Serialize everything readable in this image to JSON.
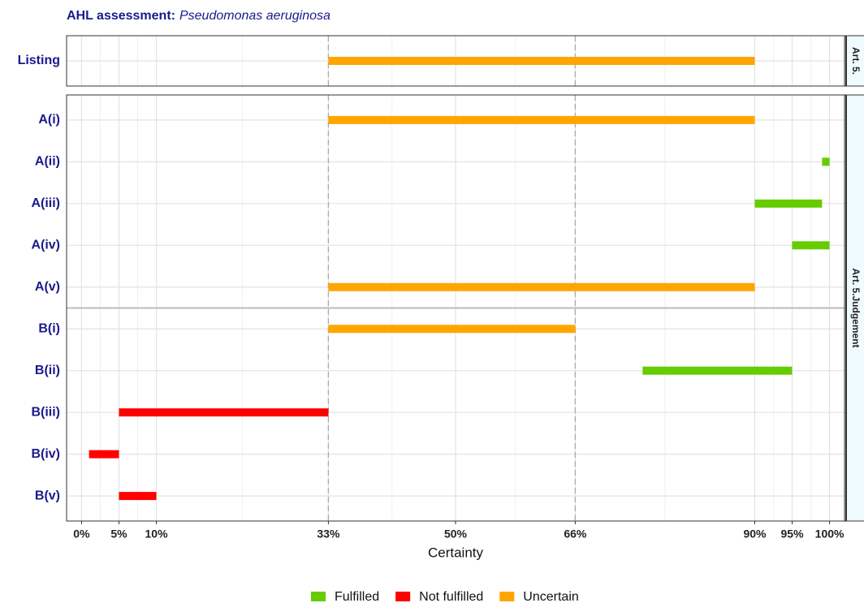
{
  "chart_data": {
    "type": "range",
    "title": "AHL  assessment:",
    "subtitle": "Pseudomonas aeruginosa",
    "x_label": "Certainty",
    "xlim": [
      -2,
      102
    ],
    "xticks": [
      {
        "value": 0,
        "label": "0%"
      },
      {
        "value": 5,
        "label": "5%"
      },
      {
        "value": 10,
        "label": "10%"
      },
      {
        "value": 33,
        "label": "33%"
      },
      {
        "value": 50,
        "label": "50%"
      },
      {
        "value": 66,
        "label": "66%"
      },
      {
        "value": 90,
        "label": "90%"
      },
      {
        "value": 95,
        "label": "95%"
      },
      {
        "value": 100,
        "label": "100%"
      }
    ],
    "vlines": [
      33,
      66
    ],
    "grid": true,
    "legend": [
      {
        "name": "Fulfilled",
        "color": "#66cc00"
      },
      {
        "name": "Not fulfilled",
        "color": "#ff0000"
      },
      {
        "name": "Uncertain",
        "color": "#ffa500"
      }
    ],
    "panels": [
      {
        "strip": "Art. 5.",
        "categories": [
          "Listing"
        ],
        "series": [
          {
            "low": [
              null
            ],
            "high": [
              null
            ]
          },
          {
            "low": [
              null
            ],
            "high": [
              null
            ]
          },
          {
            "low": [
              33
            ],
            "high": [
              90
            ]
          }
        ]
      },
      {
        "strip": "Art. 5.Judgement",
        "categories": [
          "A(i)",
          "A(ii)",
          "A(iii)",
          "A(iv)",
          "A(v)",
          "B(i)",
          "B(ii)",
          "B(iii)",
          "B(iv)",
          "B(v)"
        ],
        "series": [
          {
            "low": [
              null,
              99,
              90,
              95,
              null,
              null,
              75,
              null,
              null,
              null
            ],
            "high": [
              null,
              100,
              99,
              100,
              null,
              null,
              95,
              null,
              null,
              null
            ]
          },
          {
            "low": [
              null,
              null,
              null,
              null,
              null,
              null,
              null,
              5,
              1,
              5
            ],
            "high": [
              null,
              null,
              null,
              null,
              null,
              null,
              null,
              33,
              5,
              10
            ]
          },
          {
            "low": [
              33,
              null,
              null,
              null,
              33,
              33,
              null,
              null,
              null,
              null
            ],
            "high": [
              90,
              null,
              null,
              null,
              90,
              66,
              null,
              null,
              null,
              null
            ]
          }
        ]
      }
    ]
  }
}
